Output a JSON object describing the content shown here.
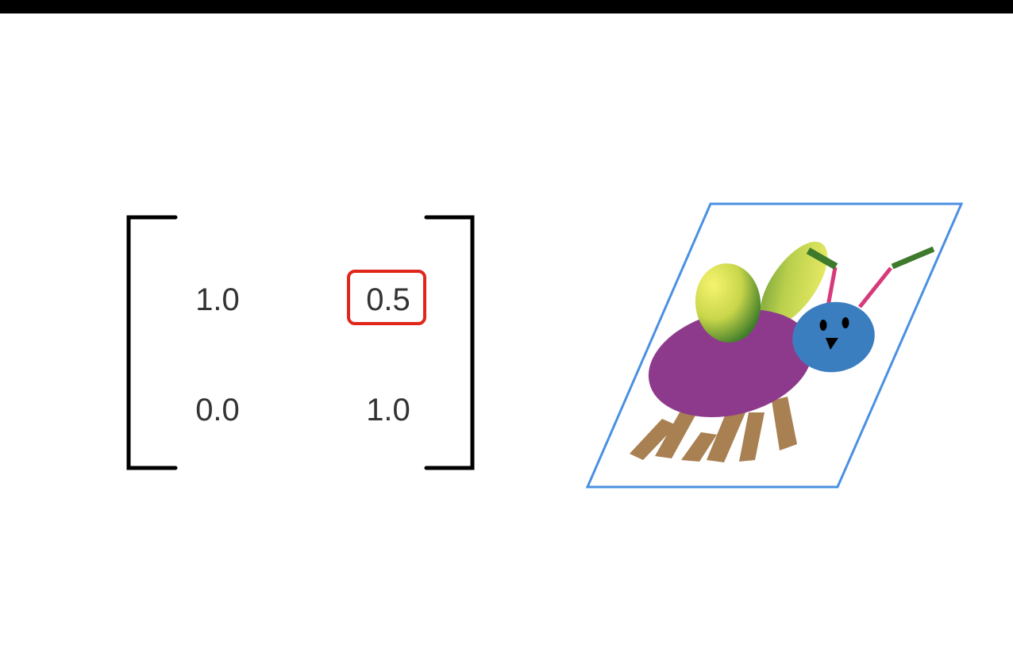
{
  "matrix": {
    "rows": [
      [
        "1.0",
        "0.5"
      ],
      [
        "0.0",
        "1.0"
      ]
    ],
    "highlighted_cell": {
      "row": 0,
      "col": 1
    }
  },
  "colors": {
    "top_bar": "#000000",
    "bracket": "#000000",
    "highlight": "#e0261b",
    "parallelogram_border": "#4a90e2",
    "body": "#8e3a8c",
    "head": "#3b7ec0",
    "legs": "#a88052",
    "antenna": "#d63a7a",
    "antenna_tip": "#3d7a2b",
    "wing_light": "#f2ee66",
    "wing_dark": "#4f8a2f"
  },
  "illustration": {
    "subject": "bug-icon",
    "transform": "shear"
  }
}
